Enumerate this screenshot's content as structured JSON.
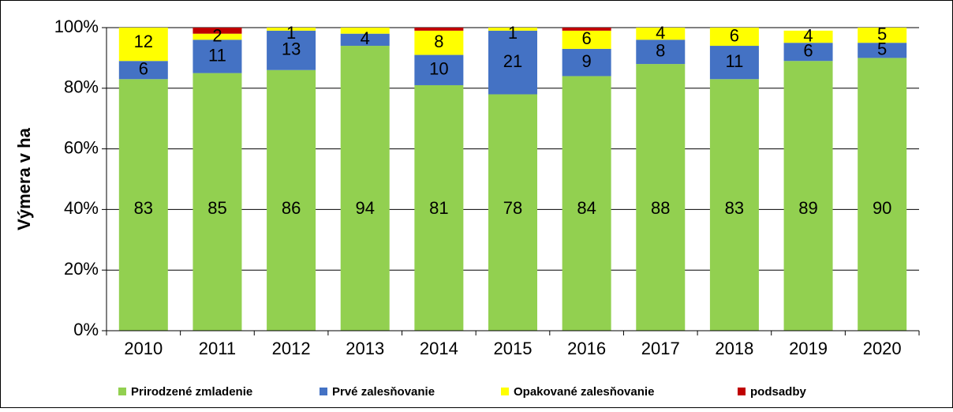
{
  "chart_data": {
    "type": "stacked_bar_percent",
    "y_axis_label": "Výmera v ha",
    "categories": [
      "2010",
      "2011",
      "2012",
      "2013",
      "2014",
      "2015",
      "2016",
      "2017",
      "2018",
      "2019",
      "2020"
    ],
    "series": [
      {
        "name": "Prirodzené zmladenie",
        "color": "#92d050",
        "values": [
          83,
          85,
          86,
          94,
          81,
          78,
          84,
          88,
          83,
          89,
          90
        ],
        "value_labels": [
          "83",
          "85",
          "86",
          "94",
          "81",
          "78",
          "84",
          "88",
          "83",
          "89",
          "90"
        ]
      },
      {
        "name": "Prvé zalesňovanie",
        "color": "#4472c4",
        "values": [
          6,
          11,
          13,
          4,
          10,
          21,
          9,
          8,
          11,
          6,
          5
        ],
        "value_labels": [
          "6",
          "11",
          "13",
          "4",
          "10",
          "21",
          "9",
          "8",
          "11",
          "6",
          "5"
        ]
      },
      {
        "name": "Opakované zalesňovanie",
        "color": "#ffff00",
        "values": [
          12,
          2,
          1,
          2,
          8,
          1,
          6,
          4,
          6,
          4,
          5
        ],
        "value_labels": [
          "12",
          "2",
          "1",
          null,
          "8",
          "1",
          "6",
          "4",
          "6",
          "4",
          "5"
        ]
      },
      {
        "name": "podsadby",
        "color": "#c00000",
        "values": [
          0,
          2,
          0,
          0,
          1,
          0,
          1,
          0,
          0,
          0,
          0
        ]
      }
    ],
    "ylim": [
      0,
      100
    ],
    "yticks": [
      {
        "value": 0,
        "label": "0%"
      },
      {
        "value": 20,
        "label": "20%"
      },
      {
        "value": 40,
        "label": "40%"
      },
      {
        "value": 60,
        "label": "60%"
      },
      {
        "value": 80,
        "label": "80%"
      },
      {
        "value": 100,
        "label": "100%"
      }
    ],
    "grid": true,
    "legend": "bottom"
  }
}
